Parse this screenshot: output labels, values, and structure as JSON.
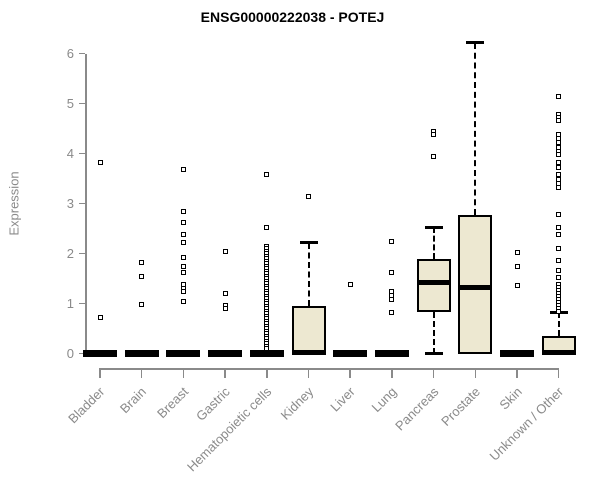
{
  "chart": {
    "title": "ENSG00000222038 - POTEJ",
    "ylabel": "Expression"
  },
  "chart_data": {
    "type": "boxplot",
    "title": "ENSG00000222038 - POTEJ",
    "xlabel": "",
    "ylabel": "Expression",
    "ylim": [
      0,
      6
    ],
    "yticks": [
      0,
      1,
      2,
      3,
      4,
      5,
      6
    ],
    "grid": false,
    "legend": "none",
    "categories": [
      "Bladder",
      "Brain",
      "Breast",
      "Gastric",
      "Hematopoietic cells",
      "Kidney",
      "Liver",
      "Lung",
      "Pancreas",
      "Prostate",
      "Skin",
      "Unknown / Other"
    ],
    "boxes": [
      {
        "category": "Bladder",
        "q1": 0,
        "median": 0,
        "q3": 0,
        "whisker_low": 0,
        "whisker_high": 0,
        "outliers": [
          3.82,
          0.72
        ]
      },
      {
        "category": "Brain",
        "q1": 0,
        "median": 0,
        "q3": 0,
        "whisker_low": 0,
        "whisker_high": 0,
        "outliers": [
          1.82,
          1.55,
          0.99
        ]
      },
      {
        "category": "Breast",
        "q1": 0,
        "median": 0,
        "q3": 0,
        "whisker_low": 0,
        "whisker_high": 0,
        "outliers": [
          3.68,
          2.85,
          2.62,
          2.38,
          2.22,
          1.92,
          1.75,
          1.62,
          1.38,
          1.3,
          1.24,
          1.05
        ]
      },
      {
        "category": "Gastric",
        "q1": 0,
        "median": 0,
        "q3": 0,
        "whisker_low": 0,
        "whisker_high": 0,
        "outliers": [
          2.05,
          1.2,
          0.96,
          0.9
        ]
      },
      {
        "category": "Hematopoietic cells",
        "q1": 0,
        "median": 0,
        "q3": 0,
        "whisker_low": 0,
        "whisker_high": 0,
        "outliers": [
          3.58,
          2.52,
          2.15,
          2.1,
          2.05,
          2.0,
          1.95,
          1.9,
          1.85,
          1.8,
          1.75,
          1.7,
          1.65,
          1.6,
          1.55,
          1.5,
          1.45,
          1.4,
          1.35,
          1.3,
          1.25,
          1.2,
          1.15,
          1.1,
          1.05,
          1.0,
          0.95,
          0.9,
          0.85,
          0.8,
          0.75,
          0.7,
          0.65,
          0.6,
          0.55,
          0.5,
          0.45,
          0.4,
          0.35,
          0.3,
          0.25,
          0.2,
          0.15,
          0.1
        ]
      },
      {
        "category": "Kidney",
        "q1": 0,
        "median": 0.02,
        "q3": 0.96,
        "whisker_low": 0,
        "whisker_high": 2.22,
        "outliers": [
          3.15
        ]
      },
      {
        "category": "Liver",
        "q1": 0,
        "median": 0,
        "q3": 0,
        "whisker_low": 0,
        "whisker_high": 0,
        "outliers": [
          1.38
        ]
      },
      {
        "category": "Lung",
        "q1": 0,
        "median": 0,
        "q3": 0,
        "whisker_low": 0,
        "whisker_high": 0,
        "outliers": [
          2.24,
          1.62,
          1.24,
          1.16,
          1.08,
          0.83
        ]
      },
      {
        "category": "Pancreas",
        "q1": 0.84,
        "median": 1.43,
        "q3": 1.89,
        "whisker_low": 0,
        "whisker_high": 2.53,
        "outliers": [
          4.45,
          4.38,
          3.95
        ]
      },
      {
        "category": "Prostate",
        "q1": 0,
        "median": 1.33,
        "q3": 2.78,
        "whisker_low": 0,
        "whisker_high": 6.22,
        "outliers": []
      },
      {
        "category": "Skin",
        "q1": 0,
        "median": 0,
        "q3": 0,
        "whisker_low": 0,
        "whisker_high": 0,
        "outliers": [
          2.02,
          1.74,
          1.36
        ]
      },
      {
        "category": "Unknown / Other",
        "q1": 0,
        "median": 0.02,
        "q3": 0.35,
        "whisker_low": 0,
        "whisker_high": 0.83,
        "outliers": [
          5.15,
          4.78,
          4.72,
          4.66,
          4.38,
          4.3,
          4.22,
          4.12,
          4.05,
          3.98,
          3.82,
          3.72,
          3.58,
          3.48,
          3.4,
          3.32,
          2.78,
          2.52,
          2.38,
          2.1,
          1.86,
          1.66,
          1.52,
          1.38,
          1.32,
          1.26,
          1.2,
          1.14,
          1.08,
          1.02,
          0.96,
          0.9,
          0.85
        ]
      }
    ],
    "colors": {
      "box_fill": "#ede8d1",
      "box_stroke": "#000000",
      "axis": "#8a8a8a",
      "title": "#000000"
    }
  }
}
